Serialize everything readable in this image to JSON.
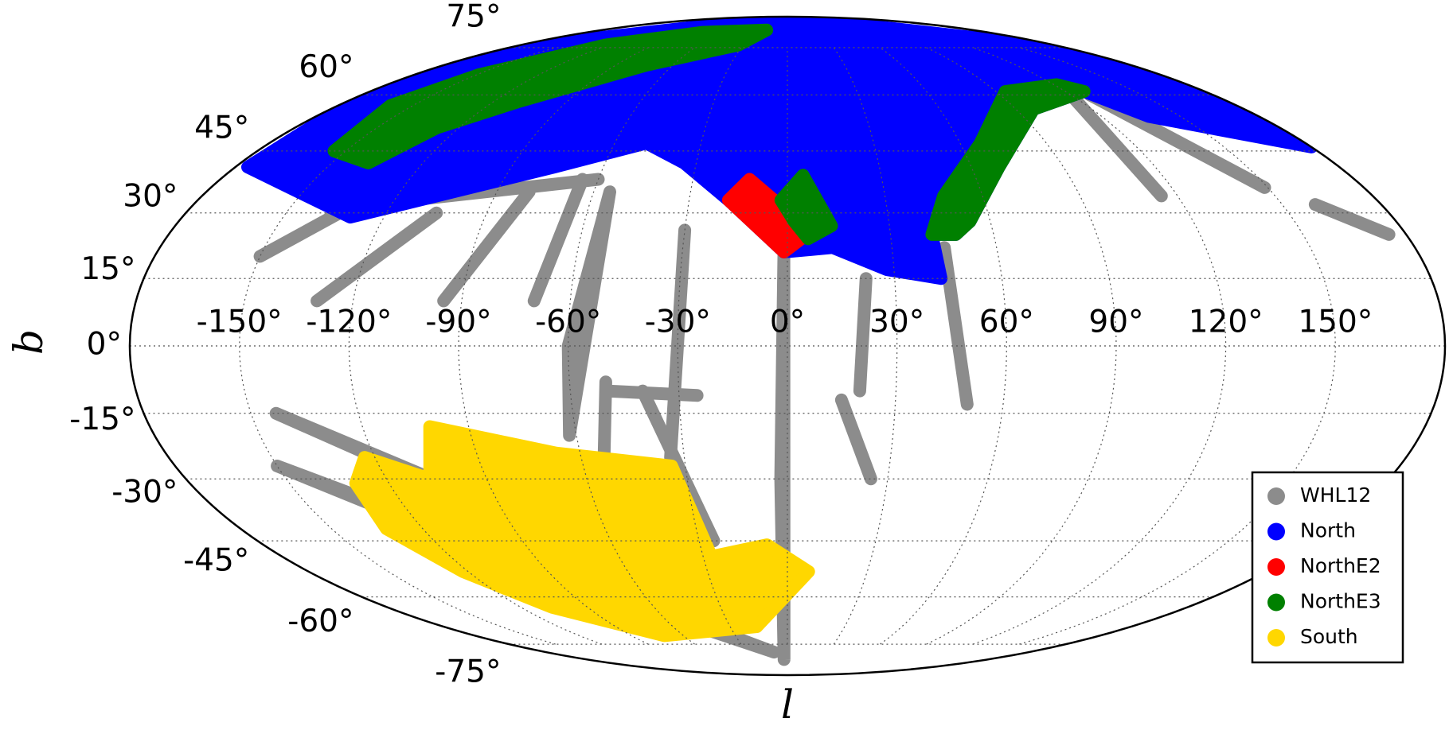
{
  "chart_data": {
    "type": "mollweide",
    "xlabel": "l",
    "ylabel": "b",
    "xlim": [
      -180,
      180
    ],
    "ylim": [
      -90,
      90
    ],
    "xticks": [
      {
        "value": -150,
        "label": "-150°"
      },
      {
        "value": -120,
        "label": "-120°"
      },
      {
        "value": -90,
        "label": "-90°"
      },
      {
        "value": -60,
        "label": "-60°"
      },
      {
        "value": -30,
        "label": "-30°"
      },
      {
        "value": 0,
        "label": "0°"
      },
      {
        "value": 30,
        "label": "30°"
      },
      {
        "value": 60,
        "label": "60°"
      },
      {
        "value": 90,
        "label": "90°"
      },
      {
        "value": 120,
        "label": "120°"
      },
      {
        "value": 150,
        "label": "150°"
      }
    ],
    "yticks": [
      {
        "value": -75,
        "label": "-75°"
      },
      {
        "value": -60,
        "label": "-60°"
      },
      {
        "value": -45,
        "label": "-45°"
      },
      {
        "value": -30,
        "label": "-30°"
      },
      {
        "value": -15,
        "label": "-15°"
      },
      {
        "value": 0,
        "label": "0°"
      },
      {
        "value": 15,
        "label": "15°"
      },
      {
        "value": 30,
        "label": "30°"
      },
      {
        "value": 45,
        "label": "45°"
      },
      {
        "value": 60,
        "label": "60°"
      },
      {
        "value": 75,
        "label": "75°"
      }
    ],
    "grid": true,
    "legend": "lower right",
    "series": [
      {
        "name": "WHL12",
        "color": "#8c8c8c",
        "regions": [
          {
            "l": [
              -1,
              -2,
              -3
            ],
            "b": [
              21,
              -30,
              -81
            ]
          },
          {
            "l": [
              -30,
              -34
            ],
            "b": [
              26,
              -25
            ]
          },
          {
            "l": [
              -55,
              -60,
              -62
            ],
            "b": [
              35,
              0,
              -20
            ]
          },
          {
            "l": [
              -143,
              -89,
              -22
            ],
            "b": [
              -15,
              -39,
              -63
            ]
          },
          {
            "l": [
              -150,
              -90,
              -10
            ],
            "b": [
              -27,
              -55,
              -78
            ]
          },
          {
            "l": [
              121,
              115
            ],
            "b": [
              61,
              34
            ]
          },
          {
            "l": [
              128,
              149
            ],
            "b": [
              60,
              36
            ]
          },
          {
            "l": [
              45,
              50
            ],
            "b": [
              22,
              -13
            ]
          },
          {
            "l": [
              -150,
              -120
            ],
            "b": [
              20,
              40
            ]
          },
          {
            "l": [
              -130,
              -105
            ],
            "b": [
              10,
              30
            ]
          },
          {
            "l": [
              -95,
              -80
            ],
            "b": [
              10,
              35
            ]
          },
          {
            "l": [
              -70,
              -65
            ],
            "b": [
              10,
              38
            ]
          },
          {
            "l": [
              -115,
              -60
            ],
            "b": [
              33,
              38
            ]
          },
          {
            "l": [
              22,
              20
            ],
            "b": [
              15,
              -10
            ]
          },
          {
            "l": [
              -40,
              -25
            ],
            "b": [
              -10,
              -45
            ]
          },
          {
            "l": [
              -50,
              -55
            ],
            "b": [
              -8,
              -30
            ]
          },
          {
            "l": [
              -50,
              -25
            ],
            "b": [
              -10,
              -11
            ]
          },
          {
            "l": [
              15,
              25
            ],
            "b": [
              -12,
              -30
            ]
          },
          {
            "l": [
              160,
              175
            ],
            "b": [
              32,
              25
            ]
          }
        ]
      },
      {
        "name": "North",
        "color": "#0000ff",
        "regions": [
          {
            "l": [
              -176,
              -130,
              -76,
              -49,
              -34,
              -18,
              -1,
              13,
              28,
              43,
              42,
              49,
              54,
              69,
              97,
              128,
              138,
              180,
              180,
              180,
              180,
              -180,
              -180,
              -180
            ],
            "b": [
              41,
              29,
              41,
              47,
              42,
              33,
              21,
              22,
              17,
              15,
              25,
              25,
              28,
              41,
              56,
              61,
              54,
              46,
              60,
              75,
              90,
              90,
              75,
              60
            ]
          }
        ]
      },
      {
        "name": "NorthE2",
        "color": "#ff0000",
        "regions": [
          {
            "l": [
              -18,
              -12,
              -1,
              4,
              -1
            ],
            "b": [
              33,
              38,
              31,
              24,
              21
            ]
          }
        ]
      },
      {
        "name": "NorthE3",
        "color": "#008000",
        "regions": [
          {
            "l": [
              -2,
              5,
              13,
              6,
              2
            ],
            "b": [
              33,
              39,
              27,
              24,
              28
            ]
          },
          {
            "l": [
              42,
              48,
              67,
              94,
              121,
              128,
              97,
              69,
              54,
              49
            ],
            "b": [
              25,
              34,
              47,
              61,
              63,
              61,
              56,
              41,
              28,
              25
            ]
          },
          {
            "l": [
              -154,
              -159,
              -149,
              -123,
              -76,
              -20,
              -33,
              -74,
              -110,
              -128,
              -138
            ],
            "b": [
              45,
              57,
              66,
              76,
              81,
              82,
              76,
              69,
              58,
              51,
              42
            ]
          }
        ]
      },
      {
        "name": "South",
        "color": "#ffd700",
        "regions": [
          {
            "l": [
              -123,
              -107,
              -101,
              -67,
              -34,
              -27,
              -7,
              8,
              -16,
              -71,
              -106,
              -122,
              -132,
              -130
            ],
            "b": [
              -25,
              -30,
              -18,
              -24,
              -27,
              -49,
              -46,
              -53,
              -69,
              -72,
              -63,
              -53,
              -42,
              -31
            ]
          }
        ]
      }
    ]
  }
}
